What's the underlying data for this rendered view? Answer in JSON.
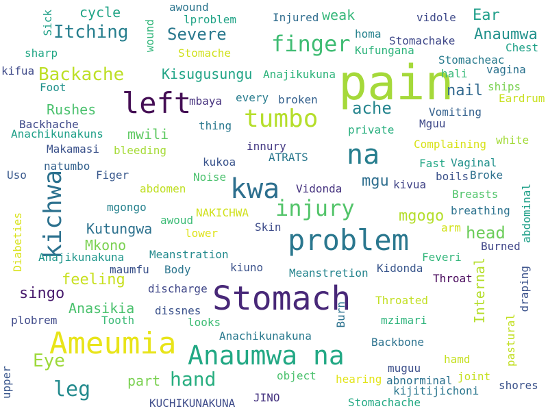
{
  "cloud": {
    "words": [
      {
        "text": "pain",
        "color": "#a5d93a"
      },
      {
        "text": "left",
        "color": "#440e54"
      },
      {
        "text": "tumbo",
        "color": "#b5de2b"
      },
      {
        "text": "na",
        "color": "#277e8e"
      },
      {
        "text": "kwa",
        "color": "#2d6f8e"
      },
      {
        "text": "kichwa",
        "color": "#2c718e"
      },
      {
        "text": "injury",
        "color": "#52c469"
      },
      {
        "text": "problem",
        "color": "#2a778e"
      },
      {
        "text": "Stomach",
        "color": "#482878"
      },
      {
        "text": "Ameumia",
        "color": "#e8e419"
      },
      {
        "text": "Anaumwa na",
        "color": "#22a884"
      },
      {
        "text": "finger",
        "color": "#3fbc73"
      },
      {
        "text": "Backache",
        "color": "#bddf26"
      },
      {
        "text": "Itching",
        "color": "#277f8e"
      },
      {
        "text": "Severe",
        "color": "#2a788e"
      },
      {
        "text": "Eye",
        "color": "#9dd93b"
      },
      {
        "text": "leg",
        "color": "#238a8d"
      },
      {
        "text": "hand",
        "color": "#28ae80"
      },
      {
        "text": "head",
        "color": "#6ccd5a"
      },
      {
        "text": "ache",
        "color": "#25858e"
      },
      {
        "text": "mgu",
        "color": "#2e6e8e"
      },
      {
        "text": "mgogo",
        "color": "#b5de2b"
      },
      {
        "text": "cycle",
        "color": "#20a486"
      },
      {
        "text": "weak",
        "color": "#35b779"
      },
      {
        "text": "Ear",
        "color": "#1f9e89"
      },
      {
        "text": "Anaumwa",
        "color": "#21918c"
      },
      {
        "text": "nail",
        "color": "#31688e"
      },
      {
        "text": "Rushes",
        "color": "#4ac16d"
      },
      {
        "text": "mwili",
        "color": "#5ec962"
      },
      {
        "text": "singo",
        "color": "#481b6d"
      },
      {
        "text": "feeling",
        "color": "#c8e020"
      },
      {
        "text": "Kutungwa",
        "color": "#2c718e"
      },
      {
        "text": "Mkono",
        "color": "#7ad151"
      },
      {
        "text": "Anasikia",
        "color": "#4ac16d"
      },
      {
        "text": "part",
        "color": "#7ad151"
      },
      {
        "text": "Kisugusungu",
        "color": "#20a486"
      },
      {
        "text": "Sick",
        "color": "#1fa088"
      },
      {
        "text": "wound",
        "color": "#32b67a"
      },
      {
        "text": "Internal",
        "color": "#b5de2b"
      },
      {
        "text": "abdominal",
        "color": "#1fa088"
      },
      {
        "text": "Diabeties",
        "color": "#d8e219"
      },
      {
        "text": "Burn",
        "color": "#2c728e"
      },
      {
        "text": "pastural",
        "color": "#c2df23"
      },
      {
        "text": "draping",
        "color": "#3b528b"
      },
      {
        "text": "upper",
        "color": "#39568c"
      },
      {
        "text": "awound",
        "color": "#2b758e"
      },
      {
        "text": "lproblem",
        "color": "#20a386"
      },
      {
        "text": "Injured",
        "color": "#2f6c8e"
      },
      {
        "text": "vidole",
        "color": "#3e4989"
      },
      {
        "text": "homa",
        "color": "#26828e"
      },
      {
        "text": "Stomachake",
        "color": "#3f4889"
      },
      {
        "text": "Kufungana",
        "color": "#2fb47c"
      },
      {
        "text": "Chest",
        "color": "#1fa187"
      },
      {
        "text": "Stomache",
        "color": "#d0e11c"
      },
      {
        "text": "Stomacheac",
        "color": "#297b8e"
      },
      {
        "text": "sharp",
        "color": "#22a785"
      },
      {
        "text": "kifua",
        "color": "#3e4a89"
      },
      {
        "text": "Anajikukuna",
        "color": "#2fb47c"
      },
      {
        "text": "hali",
        "color": "#37b878"
      },
      {
        "text": "vagina",
        "color": "#2c728e"
      },
      {
        "text": "Foot",
        "color": "#21918c"
      },
      {
        "text": "ships",
        "color": "#7ad151"
      },
      {
        "text": "Eardrum",
        "color": "#c8e020"
      },
      {
        "text": "mbaya",
        "color": "#46327e"
      },
      {
        "text": "every",
        "color": "#287c8e"
      },
      {
        "text": "broken",
        "color": "#34618d"
      },
      {
        "text": "Vomiting",
        "color": "#34618d"
      },
      {
        "text": "Backhache",
        "color": "#3e4989"
      },
      {
        "text": "thing",
        "color": "#2a788e"
      },
      {
        "text": "private",
        "color": "#29af7f"
      },
      {
        "text": "Mguu",
        "color": "#3e4989"
      },
      {
        "text": "Anachikunakuns",
        "color": "#1fa088"
      },
      {
        "text": "Complaining",
        "color": "#d8e219"
      },
      {
        "text": "white",
        "color": "#a2da37"
      },
      {
        "text": "Makamasi",
        "color": "#3b528b"
      },
      {
        "text": "bleeding",
        "color": "#a5db36"
      },
      {
        "text": "innury",
        "color": "#443983"
      },
      {
        "text": "ATRATS",
        "color": "#2a788e"
      },
      {
        "text": "natumbo",
        "color": "#34618d"
      },
      {
        "text": "kukoa",
        "color": "#3a548c"
      },
      {
        "text": "Fast",
        "color": "#22a785"
      },
      {
        "text": "Vaginal",
        "color": "#21918c"
      },
      {
        "text": "Uso",
        "color": "#38588c"
      },
      {
        "text": "Figer",
        "color": "#38588c"
      },
      {
        "text": "Noise",
        "color": "#4ac16d"
      },
      {
        "text": "boils",
        "color": "#3b528b"
      },
      {
        "text": "Broke",
        "color": "#2d708e"
      },
      {
        "text": "abdomen",
        "color": "#c0df25"
      },
      {
        "text": "Vidonda",
        "color": "#46337f"
      },
      {
        "text": "kivua",
        "color": "#414487"
      },
      {
        "text": "Breasts",
        "color": "#50c46a"
      },
      {
        "text": "mgongo",
        "color": "#26828e"
      },
      {
        "text": "NAKICHWA",
        "color": "#d0e11c"
      },
      {
        "text": "awoud",
        "color": "#3bbb75"
      },
      {
        "text": "breathing",
        "color": "#2c728e"
      },
      {
        "text": "lower",
        "color": "#dde318"
      },
      {
        "text": "Skin",
        "color": "#3e4c8a"
      },
      {
        "text": "arm",
        "color": "#d2e21b"
      },
      {
        "text": "Burned",
        "color": "#404688"
      },
      {
        "text": "Anajikunakuna",
        "color": "#1f968b"
      },
      {
        "text": "Meanstration",
        "color": "#238a8d"
      },
      {
        "text": "Feveri",
        "color": "#32b67a"
      },
      {
        "text": "maumfu",
        "color": "#3b528b"
      },
      {
        "text": "Body",
        "color": "#2b758e"
      },
      {
        "text": "kiuno",
        "color": "#3b528b"
      },
      {
        "text": "Meanstretion",
        "color": "#25848e"
      },
      {
        "text": "Kidonda",
        "color": "#39568c"
      },
      {
        "text": "Throat",
        "color": "#450559"
      },
      {
        "text": "discharge",
        "color": "#3f4788"
      },
      {
        "text": "dissnes",
        "color": "#3b528b"
      },
      {
        "text": "Throated",
        "color": "#c2df23"
      },
      {
        "text": "plobrem",
        "color": "#3e4989"
      },
      {
        "text": "Tooth",
        "color": "#3aba76"
      },
      {
        "text": "looks",
        "color": "#3dbc74"
      },
      {
        "text": "mzimari",
        "color": "#2fb47c"
      },
      {
        "text": "Anachikunakuna",
        "color": "#29798e"
      },
      {
        "text": "Backbone",
        "color": "#2c728e"
      },
      {
        "text": "object",
        "color": "#4ac16d"
      },
      {
        "text": "hearing",
        "color": "#e2e418"
      },
      {
        "text": "hamd",
        "color": "#c5e021"
      },
      {
        "text": "joint",
        "color": "#c5e021"
      },
      {
        "text": "muguu",
        "color": "#3c4f8a"
      },
      {
        "text": "abnorminal",
        "color": "#2c718e"
      },
      {
        "text": "kijitijichoni",
        "color": "#2a768e"
      },
      {
        "text": "shores",
        "color": "#3b528b"
      },
      {
        "text": "KUCHIKUNAKUNA",
        "color": "#3e4c8a"
      },
      {
        "text": "JINO",
        "color": "#463480"
      },
      {
        "text": "Stomachache",
        "color": "#23a983"
      }
    ]
  }
}
